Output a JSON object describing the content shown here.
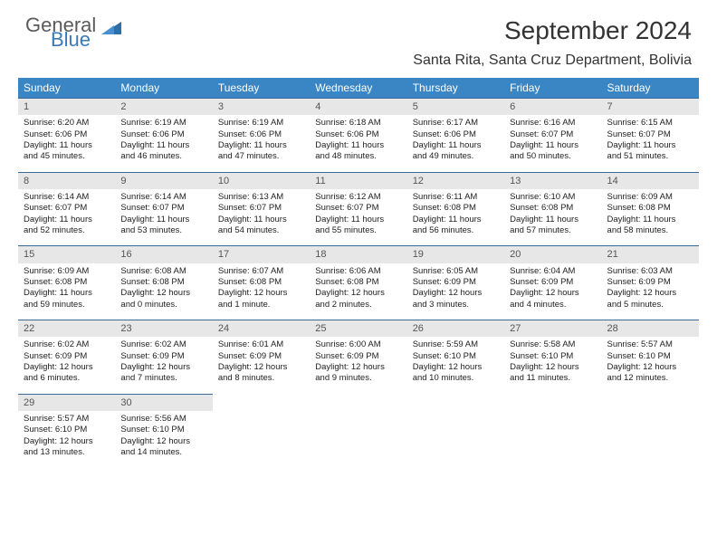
{
  "brand": {
    "name1": "General",
    "name2": "Blue",
    "name1_color": "#5a5a5a",
    "name2_color": "#3a7ab8"
  },
  "title": "September 2024",
  "location": "Santa Rita, Santa Cruz Department, Bolivia",
  "colors": {
    "header_bg": "#3a86c5",
    "header_text": "#ffffff",
    "daynum_bg": "#e7e7e7",
    "daynum_text": "#555555",
    "row_border": "#3a6a98",
    "body_text": "#222222",
    "page_bg": "#ffffff"
  },
  "typography": {
    "title_fontsize": 28,
    "location_fontsize": 16,
    "dayhead_fontsize": 12,
    "daynum_fontsize": 11,
    "body_fontsize": 9.5
  },
  "layout": {
    "columns": 7,
    "rows": 5,
    "cell_width_pct": 14.28
  },
  "day_headers": [
    "Sunday",
    "Monday",
    "Tuesday",
    "Wednesday",
    "Thursday",
    "Friday",
    "Saturday"
  ],
  "weeks": [
    [
      {
        "n": "1",
        "sunrise": "Sunrise: 6:20 AM",
        "sunset": "Sunset: 6:06 PM",
        "day1": "Daylight: 11 hours",
        "day2": "and 45 minutes."
      },
      {
        "n": "2",
        "sunrise": "Sunrise: 6:19 AM",
        "sunset": "Sunset: 6:06 PM",
        "day1": "Daylight: 11 hours",
        "day2": "and 46 minutes."
      },
      {
        "n": "3",
        "sunrise": "Sunrise: 6:19 AM",
        "sunset": "Sunset: 6:06 PM",
        "day1": "Daylight: 11 hours",
        "day2": "and 47 minutes."
      },
      {
        "n": "4",
        "sunrise": "Sunrise: 6:18 AM",
        "sunset": "Sunset: 6:06 PM",
        "day1": "Daylight: 11 hours",
        "day2": "and 48 minutes."
      },
      {
        "n": "5",
        "sunrise": "Sunrise: 6:17 AM",
        "sunset": "Sunset: 6:06 PM",
        "day1": "Daylight: 11 hours",
        "day2": "and 49 minutes."
      },
      {
        "n": "6",
        "sunrise": "Sunrise: 6:16 AM",
        "sunset": "Sunset: 6:07 PM",
        "day1": "Daylight: 11 hours",
        "day2": "and 50 minutes."
      },
      {
        "n": "7",
        "sunrise": "Sunrise: 6:15 AM",
        "sunset": "Sunset: 6:07 PM",
        "day1": "Daylight: 11 hours",
        "day2": "and 51 minutes."
      }
    ],
    [
      {
        "n": "8",
        "sunrise": "Sunrise: 6:14 AM",
        "sunset": "Sunset: 6:07 PM",
        "day1": "Daylight: 11 hours",
        "day2": "and 52 minutes."
      },
      {
        "n": "9",
        "sunrise": "Sunrise: 6:14 AM",
        "sunset": "Sunset: 6:07 PM",
        "day1": "Daylight: 11 hours",
        "day2": "and 53 minutes."
      },
      {
        "n": "10",
        "sunrise": "Sunrise: 6:13 AM",
        "sunset": "Sunset: 6:07 PM",
        "day1": "Daylight: 11 hours",
        "day2": "and 54 minutes."
      },
      {
        "n": "11",
        "sunrise": "Sunrise: 6:12 AM",
        "sunset": "Sunset: 6:07 PM",
        "day1": "Daylight: 11 hours",
        "day2": "and 55 minutes."
      },
      {
        "n": "12",
        "sunrise": "Sunrise: 6:11 AM",
        "sunset": "Sunset: 6:08 PM",
        "day1": "Daylight: 11 hours",
        "day2": "and 56 minutes."
      },
      {
        "n": "13",
        "sunrise": "Sunrise: 6:10 AM",
        "sunset": "Sunset: 6:08 PM",
        "day1": "Daylight: 11 hours",
        "day2": "and 57 minutes."
      },
      {
        "n": "14",
        "sunrise": "Sunrise: 6:09 AM",
        "sunset": "Sunset: 6:08 PM",
        "day1": "Daylight: 11 hours",
        "day2": "and 58 minutes."
      }
    ],
    [
      {
        "n": "15",
        "sunrise": "Sunrise: 6:09 AM",
        "sunset": "Sunset: 6:08 PM",
        "day1": "Daylight: 11 hours",
        "day2": "and 59 minutes."
      },
      {
        "n": "16",
        "sunrise": "Sunrise: 6:08 AM",
        "sunset": "Sunset: 6:08 PM",
        "day1": "Daylight: 12 hours",
        "day2": "and 0 minutes."
      },
      {
        "n": "17",
        "sunrise": "Sunrise: 6:07 AM",
        "sunset": "Sunset: 6:08 PM",
        "day1": "Daylight: 12 hours",
        "day2": "and 1 minute."
      },
      {
        "n": "18",
        "sunrise": "Sunrise: 6:06 AM",
        "sunset": "Sunset: 6:08 PM",
        "day1": "Daylight: 12 hours",
        "day2": "and 2 minutes."
      },
      {
        "n": "19",
        "sunrise": "Sunrise: 6:05 AM",
        "sunset": "Sunset: 6:09 PM",
        "day1": "Daylight: 12 hours",
        "day2": "and 3 minutes."
      },
      {
        "n": "20",
        "sunrise": "Sunrise: 6:04 AM",
        "sunset": "Sunset: 6:09 PM",
        "day1": "Daylight: 12 hours",
        "day2": "and 4 minutes."
      },
      {
        "n": "21",
        "sunrise": "Sunrise: 6:03 AM",
        "sunset": "Sunset: 6:09 PM",
        "day1": "Daylight: 12 hours",
        "day2": "and 5 minutes."
      }
    ],
    [
      {
        "n": "22",
        "sunrise": "Sunrise: 6:02 AM",
        "sunset": "Sunset: 6:09 PM",
        "day1": "Daylight: 12 hours",
        "day2": "and 6 minutes."
      },
      {
        "n": "23",
        "sunrise": "Sunrise: 6:02 AM",
        "sunset": "Sunset: 6:09 PM",
        "day1": "Daylight: 12 hours",
        "day2": "and 7 minutes."
      },
      {
        "n": "24",
        "sunrise": "Sunrise: 6:01 AM",
        "sunset": "Sunset: 6:09 PM",
        "day1": "Daylight: 12 hours",
        "day2": "and 8 minutes."
      },
      {
        "n": "25",
        "sunrise": "Sunrise: 6:00 AM",
        "sunset": "Sunset: 6:09 PM",
        "day1": "Daylight: 12 hours",
        "day2": "and 9 minutes."
      },
      {
        "n": "26",
        "sunrise": "Sunrise: 5:59 AM",
        "sunset": "Sunset: 6:10 PM",
        "day1": "Daylight: 12 hours",
        "day2": "and 10 minutes."
      },
      {
        "n": "27",
        "sunrise": "Sunrise: 5:58 AM",
        "sunset": "Sunset: 6:10 PM",
        "day1": "Daylight: 12 hours",
        "day2": "and 11 minutes."
      },
      {
        "n": "28",
        "sunrise": "Sunrise: 5:57 AM",
        "sunset": "Sunset: 6:10 PM",
        "day1": "Daylight: 12 hours",
        "day2": "and 12 minutes."
      }
    ],
    [
      {
        "n": "29",
        "sunrise": "Sunrise: 5:57 AM",
        "sunset": "Sunset: 6:10 PM",
        "day1": "Daylight: 12 hours",
        "day2": "and 13 minutes."
      },
      {
        "n": "30",
        "sunrise": "Sunrise: 5:56 AM",
        "sunset": "Sunset: 6:10 PM",
        "day1": "Daylight: 12 hours",
        "day2": "and 14 minutes."
      },
      {
        "empty": true
      },
      {
        "empty": true
      },
      {
        "empty": true
      },
      {
        "empty": true
      },
      {
        "empty": true
      }
    ]
  ]
}
